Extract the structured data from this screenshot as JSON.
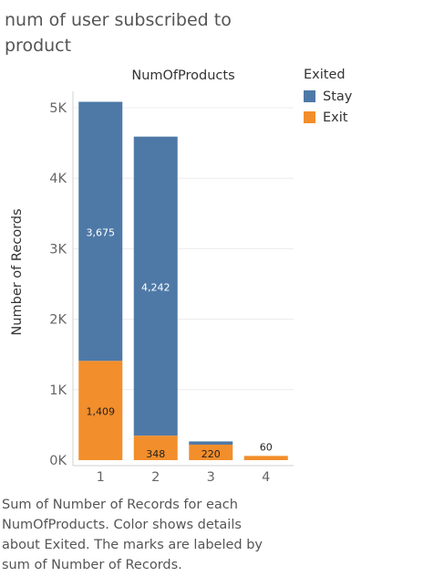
{
  "page": {
    "title": "num of user subscribed to product",
    "caption_lines": [
      "Sum of Number of Records for each",
      "NumOfProducts.  Color shows details",
      "about Exited.  The marks are labeled by",
      "sum of Number of Records."
    ]
  },
  "legend": {
    "title": "Exited",
    "items": [
      {
        "label": "Stay",
        "color": "#4e79a7"
      },
      {
        "label": "Exit",
        "color": "#f28e2b"
      }
    ]
  },
  "chart_data": {
    "type": "bar",
    "stacked": true,
    "title": "NumOfProducts",
    "xlabel": "",
    "ylabel": "Number of Records",
    "categories": [
      "1",
      "2",
      "3",
      "4"
    ],
    "series": [
      {
        "name": "Exit",
        "color": "#f28e2b",
        "values": [
          1409,
          348,
          220,
          60
        ],
        "labels": [
          "1,409",
          "348",
          "220",
          "60"
        ]
      },
      {
        "name": "Stay",
        "color": "#4e79a7",
        "values": [
          3675,
          4242,
          46,
          0
        ],
        "labels": [
          "3,675",
          "4,242",
          "",
          ""
        ]
      }
    ],
    "ylim": [
      0,
      5000
    ],
    "yticks": [
      0,
      1000,
      2000,
      3000,
      4000,
      5000
    ],
    "ytick_labels": [
      "0K",
      "1K",
      "2K",
      "3K",
      "4K",
      "5K"
    ],
    "grid": true,
    "legend_position": "top-right"
  }
}
